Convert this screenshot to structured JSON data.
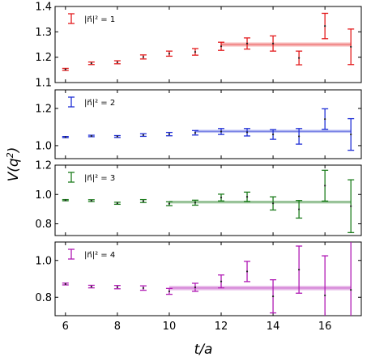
{
  "chart_data": {
    "type": "scatter",
    "xlabel": "t/a",
    "ylabel": "V(q^2)",
    "xlim": [
      5.6,
      17.4
    ],
    "x_ticks": [
      "6",
      "8",
      "10",
      "12",
      "14",
      "16"
    ],
    "panels": [
      {
        "name": "|n|^2 = 1",
        "legend_label": "|n⃗|² = 1",
        "color": "#e31a1c",
        "ylim": [
          1.1,
          1.4
        ],
        "y_ticks": [
          "1.1",
          "1.2",
          "1.3",
          "1.4"
        ],
        "fit": {
          "x_range": [
            12,
            17
          ],
          "value": 1.25,
          "error": 0.008
        },
        "points": [
          {
            "x": 6,
            "y": 1.152,
            "err": 0.004
          },
          {
            "x": 7,
            "y": 1.176,
            "err": 0.005
          },
          {
            "x": 8,
            "y": 1.18,
            "err": 0.006
          },
          {
            "x": 9,
            "y": 1.201,
            "err": 0.008
          },
          {
            "x": 10,
            "y": 1.214,
            "err": 0.01
          },
          {
            "x": 11,
            "y": 1.221,
            "err": 0.013
          },
          {
            "x": 12,
            "y": 1.243,
            "err": 0.016
          },
          {
            "x": 13,
            "y": 1.254,
            "err": 0.022
          },
          {
            "x": 14,
            "y": 1.254,
            "err": 0.03
          },
          {
            "x": 15,
            "y": 1.197,
            "err": 0.027
          },
          {
            "x": 16,
            "y": 1.323,
            "err": 0.05
          },
          {
            "x": 17,
            "y": 1.241,
            "err": 0.07
          }
        ]
      },
      {
        "name": "|n|^2 = 2",
        "legend_label": "|n⃗|² = 2",
        "color": "#1f2fd6",
        "ylim": [
          0.93,
          1.3
        ],
        "y_ticks": [
          "1.0",
          "1.2"
        ],
        "fit": {
          "x_range": [
            11,
            17
          ],
          "value": 1.077,
          "error": 0.008
        },
        "points": [
          {
            "x": 6,
            "y": 1.046,
            "err": 0.003
          },
          {
            "x": 7,
            "y": 1.052,
            "err": 0.004
          },
          {
            "x": 8,
            "y": 1.049,
            "err": 0.005
          },
          {
            "x": 9,
            "y": 1.057,
            "err": 0.007
          },
          {
            "x": 10,
            "y": 1.062,
            "err": 0.009
          },
          {
            "x": 11,
            "y": 1.069,
            "err": 0.012
          },
          {
            "x": 12,
            "y": 1.076,
            "err": 0.016
          },
          {
            "x": 13,
            "y": 1.072,
            "err": 0.02
          },
          {
            "x": 14,
            "y": 1.06,
            "err": 0.026
          },
          {
            "x": 15,
            "y": 1.05,
            "err": 0.042
          },
          {
            "x": 16,
            "y": 1.143,
            "err": 0.055
          },
          {
            "x": 17,
            "y": 1.06,
            "err": 0.085
          }
        ]
      },
      {
        "name": "|n|^2 = 3",
        "legend_label": "|n⃗|² = 3",
        "color": "#1c7c1c",
        "ylim": [
          0.72,
          1.2
        ],
        "y_ticks": [
          "0.8",
          "1.0",
          "1.2"
        ],
        "fit": {
          "x_range": [
            10,
            17
          ],
          "value": 0.948,
          "error": 0.01
        },
        "points": [
          {
            "x": 6,
            "y": 0.961,
            "err": 0.004
          },
          {
            "x": 7,
            "y": 0.958,
            "err": 0.006
          },
          {
            "x": 8,
            "y": 0.94,
            "err": 0.007
          },
          {
            "x": 9,
            "y": 0.955,
            "err": 0.01
          },
          {
            "x": 10,
            "y": 0.937,
            "err": 0.013
          },
          {
            "x": 11,
            "y": 0.944,
            "err": 0.017
          },
          {
            "x": 12,
            "y": 0.979,
            "err": 0.023
          },
          {
            "x": 13,
            "y": 0.984,
            "err": 0.032
          },
          {
            "x": 14,
            "y": 0.939,
            "err": 0.045
          },
          {
            "x": 15,
            "y": 0.899,
            "err": 0.06
          },
          {
            "x": 16,
            "y": 1.06,
            "err": 0.105
          },
          {
            "x": 17,
            "y": 0.92,
            "err": 0.18
          }
        ]
      },
      {
        "name": "|n|^2 = 4",
        "legend_label": "|n⃗|² = 4",
        "color": "#b01ab4",
        "ylim": [
          0.7,
          1.1
        ],
        "y_ticks": [
          "0.8",
          "1.0"
        ],
        "fit": {
          "x_range": [
            10,
            17
          ],
          "value": 0.85,
          "error": 0.012
        },
        "points": [
          {
            "x": 6,
            "y": 0.872,
            "err": 0.005
          },
          {
            "x": 7,
            "y": 0.858,
            "err": 0.007
          },
          {
            "x": 8,
            "y": 0.855,
            "err": 0.009
          },
          {
            "x": 9,
            "y": 0.85,
            "err": 0.012
          },
          {
            "x": 10,
            "y": 0.832,
            "err": 0.016
          },
          {
            "x": 11,
            "y": 0.854,
            "err": 0.022
          },
          {
            "x": 12,
            "y": 0.886,
            "err": 0.035
          },
          {
            "x": 13,
            "y": 0.94,
            "err": 0.055
          },
          {
            "x": 14,
            "y": 0.805,
            "err": 0.09
          },
          {
            "x": 15,
            "y": 0.95,
            "err": 0.128
          },
          {
            "x": 16,
            "y": 0.81,
            "err": 0.215
          },
          {
            "x": 17,
            "y": 0.84,
            "err": 0.3
          }
        ]
      }
    ]
  }
}
